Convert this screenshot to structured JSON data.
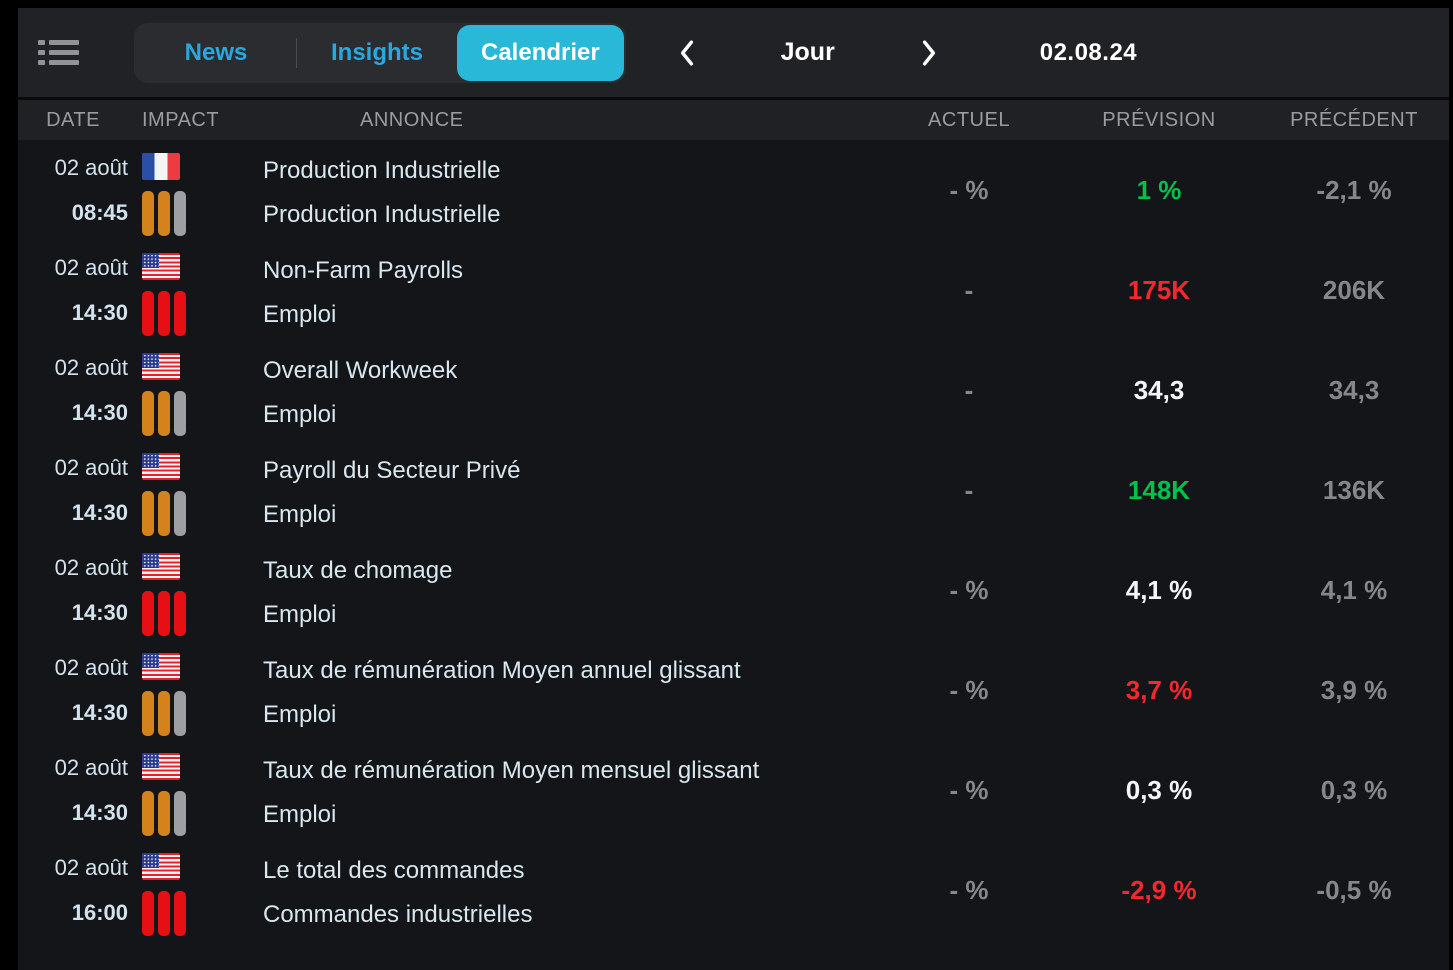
{
  "header": {
    "icons": {
      "menu": "list-icon",
      "prev": "chevron-left-icon",
      "next": "chevron-right-icon"
    },
    "tabs": [
      {
        "label": "News",
        "active": false
      },
      {
        "label": "Insights",
        "active": false
      },
      {
        "label": "Calendrier",
        "active": true
      }
    ],
    "nav": {
      "period_label": "Jour",
      "date": "02.08.24"
    }
  },
  "colors": {
    "accent_cyan": "#2ab8d9",
    "tab_blue": "#2ba7e0",
    "value_green": "#00c24a",
    "value_red": "#f5282e",
    "impact_orange": "#d4831c",
    "impact_red": "#e60f14",
    "impact_gray": "#9e9fa0"
  },
  "table": {
    "columns": {
      "date": "DATE",
      "impact": "IMPACT",
      "annonce": "ANNONCE",
      "actuel": "ACTUEL",
      "prevision": "PRÉVISION",
      "precedent": "PRÉCÉDENT"
    },
    "rows": [
      {
        "date": "02 août",
        "time": "08:45",
        "country": "fr",
        "bars": [
          "orange",
          "orange",
          "gray"
        ],
        "title": "Production Industrielle",
        "category": "Production Industrielle",
        "actual": "- %",
        "actual_color": "gray",
        "forecast": "1 %",
        "forecast_color": "green",
        "previous": "-2,1 %",
        "previous_color": "gray"
      },
      {
        "date": "02 août",
        "time": "14:30",
        "country": "us",
        "bars": [
          "red",
          "red",
          "red"
        ],
        "title": "Non-Farm Payrolls",
        "category": "Emploi",
        "actual": "-",
        "actual_color": "gray",
        "forecast": "175K",
        "forecast_color": "red",
        "previous": "206K",
        "previous_color": "gray"
      },
      {
        "date": "02 août",
        "time": "14:30",
        "country": "us",
        "bars": [
          "orange",
          "orange",
          "gray"
        ],
        "title": "Overall Workweek",
        "category": "Emploi",
        "actual": "-",
        "actual_color": "gray",
        "forecast": "34,3",
        "forecast_color": "white",
        "previous": "34,3",
        "previous_color": "gray"
      },
      {
        "date": "02 août",
        "time": "14:30",
        "country": "us",
        "bars": [
          "orange",
          "orange",
          "gray"
        ],
        "title": "Payroll du Secteur Privé",
        "category": "Emploi",
        "actual": "-",
        "actual_color": "gray",
        "forecast": "148K",
        "forecast_color": "green",
        "previous": "136K",
        "previous_color": "gray"
      },
      {
        "date": "02 août",
        "time": "14:30",
        "country": "us",
        "bars": [
          "red",
          "red",
          "red"
        ],
        "title": "Taux de chomage",
        "category": "Emploi",
        "actual": "- %",
        "actual_color": "gray",
        "forecast": "4,1 %",
        "forecast_color": "white",
        "previous": "4,1 %",
        "previous_color": "gray"
      },
      {
        "date": "02 août",
        "time": "14:30",
        "country": "us",
        "bars": [
          "orange",
          "orange",
          "gray"
        ],
        "title": "Taux de rémunération Moyen annuel glissant",
        "category": "Emploi",
        "actual": "- %",
        "actual_color": "gray",
        "forecast": "3,7 %",
        "forecast_color": "red",
        "previous": "3,9 %",
        "previous_color": "gray"
      },
      {
        "date": "02 août",
        "time": "14:30",
        "country": "us",
        "bars": [
          "orange",
          "orange",
          "gray"
        ],
        "title": "Taux de rémunération Moyen mensuel glissant",
        "category": "Emploi",
        "actual": "- %",
        "actual_color": "gray",
        "forecast": "0,3 %",
        "forecast_color": "white",
        "previous": "0,3 %",
        "previous_color": "gray"
      },
      {
        "date": "02 août",
        "time": "16:00",
        "country": "us",
        "bars": [
          "red",
          "red",
          "red"
        ],
        "title": "Le total des commandes",
        "category": "Commandes industrielles",
        "actual": "- %",
        "actual_color": "gray",
        "forecast": "-2,9 %",
        "forecast_color": "red",
        "previous": "-0,5 %",
        "previous_color": "gray"
      }
    ]
  }
}
